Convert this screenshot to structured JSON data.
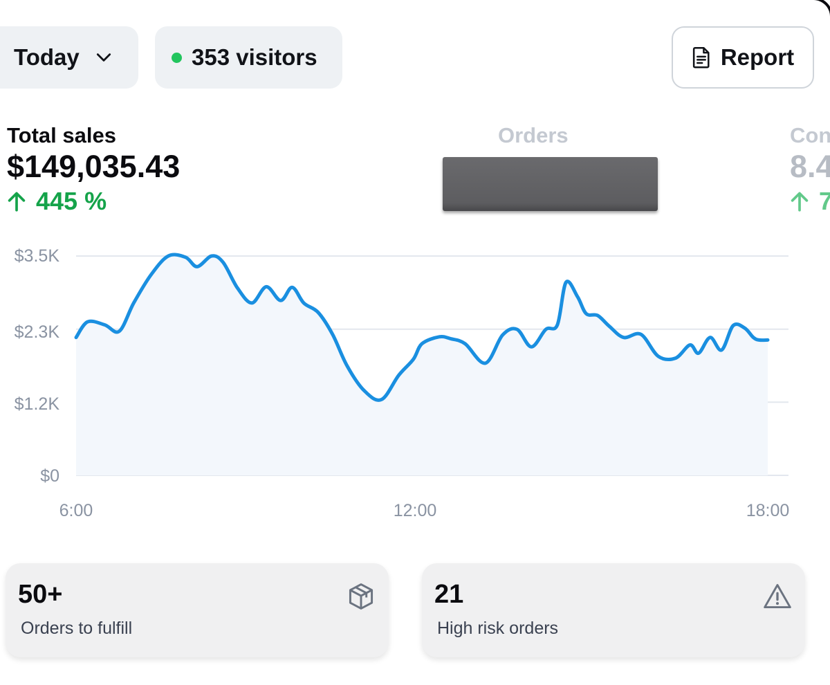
{
  "toolbar": {
    "date_filter": "Today",
    "visitors_label": "353 visitors",
    "report_label": "Report",
    "icons": {
      "chevron": "chevron-down-icon",
      "status_dot": "live-dot-icon",
      "report": "document-icon"
    }
  },
  "metrics": {
    "total_sales": {
      "label": "Total sales",
      "value": "$149,035.43",
      "change": "445 %"
    },
    "orders": {
      "label": "Orders"
    },
    "conversion": {
      "label": "Con",
      "value": "8.4",
      "change": "7"
    }
  },
  "chart_data": {
    "type": "area",
    "x_ticks": [
      "6:00",
      "12:00",
      "18:00"
    ],
    "y_ticks": [
      "$0",
      "$1.2K",
      "$2.3K",
      "$3.5K"
    ],
    "ylim": [
      0,
      3500
    ],
    "x_range": [
      6,
      18
    ],
    "grid": true,
    "line_color": "#1a8fe0",
    "fill_color": "#f3f7fc",
    "series": [
      {
        "x": [
          6.0,
          6.2,
          6.5,
          6.75,
          7.0,
          7.3,
          7.6,
          7.9,
          8.1,
          8.35,
          8.55,
          8.8,
          9.05,
          9.3,
          9.55,
          9.75,
          9.95,
          10.2,
          10.45,
          10.7,
          11.0,
          11.3,
          11.6,
          11.85,
          12.0,
          12.3,
          12.5,
          12.75,
          13.1,
          13.4,
          13.65,
          13.9,
          14.15,
          14.35,
          14.5,
          14.7,
          14.85,
          15.05,
          15.25,
          15.5,
          15.8,
          16.1,
          16.4,
          16.65,
          16.8,
          17.0,
          17.2,
          17.4,
          17.6,
          17.75,
          17.85,
          18.0
        ],
        "y": [
          2200,
          2450,
          2400,
          2300,
          2750,
          3200,
          3500,
          3480,
          3330,
          3500,
          3400,
          2990,
          2750,
          3010,
          2790,
          3000,
          2750,
          2600,
          2250,
          1750,
          1350,
          1210,
          1600,
          1850,
          2100,
          2210,
          2180,
          2100,
          1790,
          2240,
          2330,
          2050,
          2330,
          2400,
          3080,
          2850,
          2580,
          2550,
          2380,
          2200,
          2250,
          1900,
          1870,
          2080,
          1950,
          2200,
          2000,
          2390,
          2350,
          2200,
          2160,
          2160
        ]
      }
    ]
  },
  "cards": {
    "fulfill": {
      "value": "50+",
      "label": "Orders to fulfill",
      "icon": "package-icon"
    },
    "risk": {
      "value": "21",
      "label": "High risk orders",
      "icon": "warning-icon"
    }
  }
}
